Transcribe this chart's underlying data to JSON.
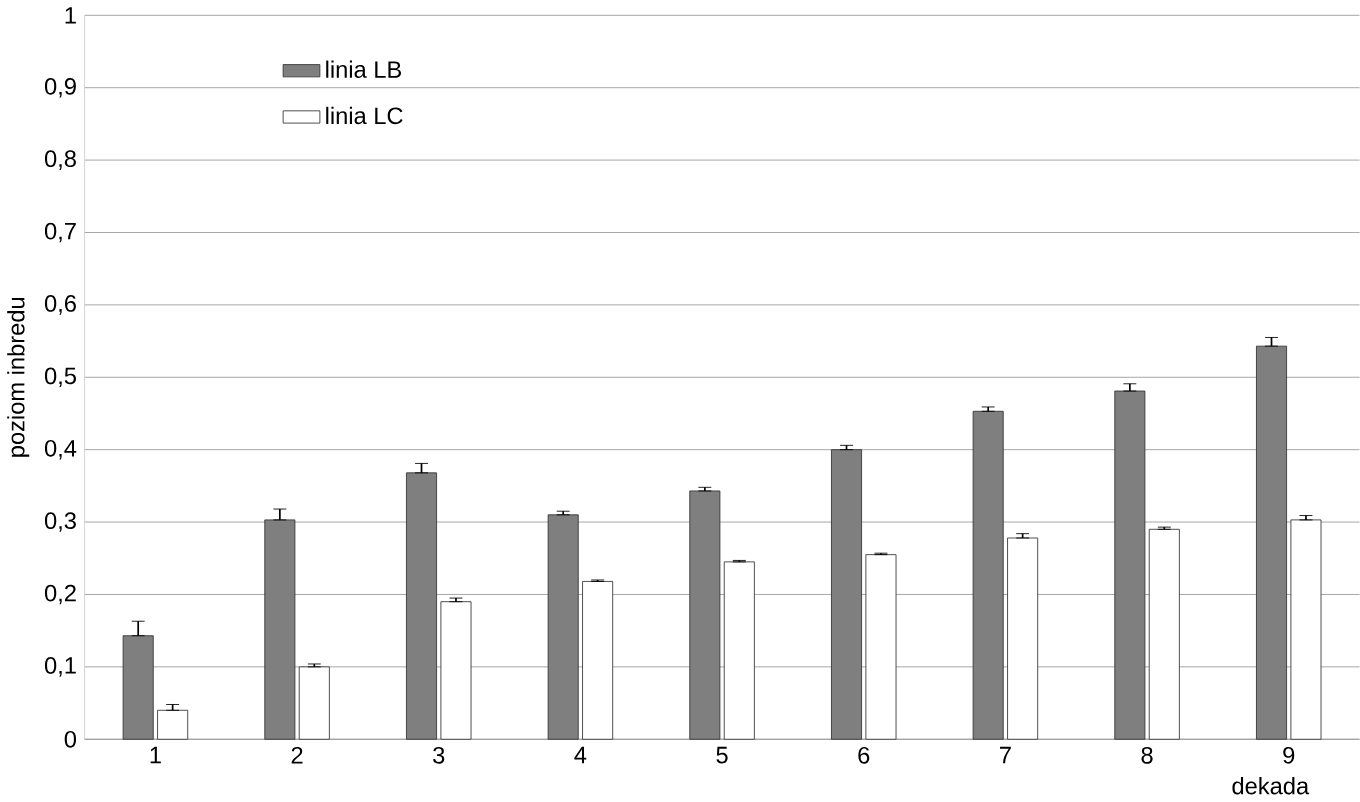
{
  "chart_data": {
    "type": "bar",
    "xlabel": "dekada",
    "ylabel": "poziom inbredu",
    "categories": [
      "1",
      "2",
      "3",
      "4",
      "5",
      "6",
      "7",
      "8",
      "9"
    ],
    "series": [
      {
        "name": "linia LB",
        "color": "#7f7f7f",
        "values": [
          0.143,
          0.303,
          0.368,
          0.31,
          0.343,
          0.4,
          0.453,
          0.481,
          0.543
        ],
        "errors": [
          [
            0.143,
            0.163
          ],
          [
            0.303,
            0.318
          ],
          [
            0.368,
            0.381
          ],
          [
            0.31,
            0.315
          ],
          [
            0.343,
            0.348
          ],
          [
            0.4,
            0.406
          ],
          [
            0.453,
            0.459
          ],
          [
            0.481,
            0.491
          ],
          [
            0.543,
            0.555
          ]
        ]
      },
      {
        "name": "linia LC",
        "color": "#ffffff",
        "values": [
          0.04,
          0.1,
          0.19,
          0.218,
          0.245,
          0.255,
          0.278,
          0.29,
          0.303
        ],
        "errors": [
          [
            0.04,
            0.048
          ],
          [
            0.1,
            0.104
          ],
          [
            0.19,
            0.195
          ],
          [
            0.218,
            0.22
          ],
          [
            0.245,
            0.247
          ],
          [
            0.255,
            0.257
          ],
          [
            0.278,
            0.284
          ],
          [
            0.29,
            0.293
          ],
          [
            0.303,
            0.309
          ]
        ]
      }
    ],
    "ylim": [
      0,
      1
    ],
    "yticks": [
      0,
      {
        "value": 0.1,
        "label": "0,1"
      },
      {
        "value": 0.2,
        "label": "0,2"
      },
      {
        "value": 0.3,
        "label": "0,3"
      },
      {
        "value": 0.4,
        "label": "0,4"
      },
      {
        "value": 0.5,
        "label": "0,5"
      },
      {
        "value": 0.6,
        "label": "0,6"
      },
      {
        "value": 0.7,
        "label": "0,7"
      },
      {
        "value": 0.8,
        "label": "0,8"
      },
      {
        "value": 0.9,
        "label": "0,9"
      },
      1
    ],
    "grid": "y",
    "legend": "top left"
  }
}
